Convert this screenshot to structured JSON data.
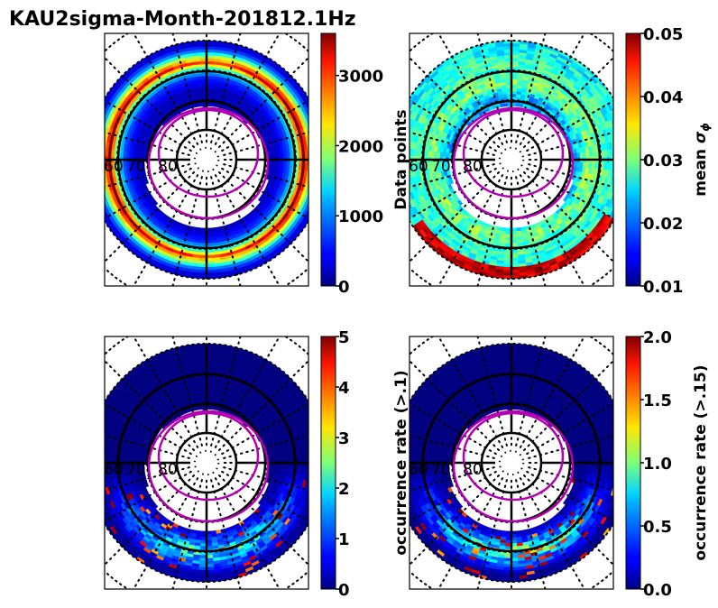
{
  "figure": {
    "title": "KAU2sigma-Month-201812.1Hz"
  },
  "chart_data": [
    {
      "type": "heatmap",
      "projection": "polar (geomagnetic latitude / MLT)",
      "panel": "top-left",
      "title": "",
      "colormap": "jet",
      "colorbar": {
        "label": "Data points",
        "range": [
          0,
          3600
        ],
        "ticks": [
          0,
          1000,
          2000,
          3000
        ],
        "tick_labels": [
          "0",
          "1000",
          "2000",
          "3000"
        ]
      },
      "latitude_labels": [
        "60",
        "70",
        "80"
      ],
      "latitude_rings": [
        50,
        60,
        70,
        80
      ],
      "data_extent_latitude": [
        50,
        70
      ],
      "description": "Annular ring of counts; peak (~3000-3600) along a narrow band near 55-58 lat, dusk/dawn sides orange; inner edge dark blue",
      "band_profile": [
        {
          "lat": 51,
          "value": 300
        },
        {
          "lat": 53,
          "value": 900
        },
        {
          "lat": 55,
          "value": 2000
        },
        {
          "lat": 57,
          "value": 3000
        },
        {
          "lat": 59,
          "value": 1500
        },
        {
          "lat": 62,
          "value": 600
        },
        {
          "lat": 66,
          "value": 200
        }
      ],
      "overlays": [
        "auroral oval boundary (magenta, 2 curves)"
      ]
    },
    {
      "type": "heatmap",
      "projection": "polar (geomagnetic latitude / MLT)",
      "panel": "top-right",
      "colormap": "jet",
      "colorbar": {
        "label": "mean σϕ",
        "range": [
          0.01,
          0.05
        ],
        "ticks": [
          0.01,
          0.02,
          0.03,
          0.04,
          0.05
        ],
        "tick_labels": [
          "0.01",
          "0.02",
          "0.03",
          "0.04",
          "0.05"
        ]
      },
      "latitude_labels": [
        "60",
        "70",
        "80"
      ],
      "latitude_rings": [
        50,
        60,
        70,
        80
      ],
      "data_extent_latitude": [
        50,
        70
      ],
      "description": "Mostly 0.02-0.03 (cyan/green); elevated 0.04-0.05 (yellow/red) near the nightside equatorward boundary and dusk sector",
      "band_profile": [
        {
          "lat": 52,
          "value": 0.025
        },
        {
          "lat": 56,
          "value": 0.027
        },
        {
          "lat": 60,
          "value": 0.028
        },
        {
          "lat": 64,
          "value": 0.03
        },
        {
          "lat": 68,
          "value": 0.022
        }
      ],
      "overlays": [
        "auroral oval boundary (magenta, 2 curves)"
      ]
    },
    {
      "type": "heatmap",
      "projection": "polar (geomagnetic latitude / MLT)",
      "panel": "bottom-left",
      "colormap": "jet",
      "colorbar": {
        "label": "occurrence rate (>.1)",
        "range": [
          0,
          5
        ],
        "ticks": [
          0,
          1,
          2,
          3,
          4,
          5
        ],
        "tick_labels": [
          "0",
          "1",
          "2",
          "3",
          "4",
          "5"
        ]
      },
      "latitude_labels": [
        "60",
        "70",
        "80"
      ],
      "latitude_rings": [
        50,
        60,
        70,
        80
      ],
      "data_extent_latitude": [
        50,
        70
      ],
      "description": "Mostly ~0 (dark blue); enhanced 1-5 in nightside/midnight sector along the auroral oval",
      "band_profile": [
        {
          "lat": 52,
          "value": 0.2
        },
        {
          "lat": 56,
          "value": 1.2
        },
        {
          "lat": 60,
          "value": 2.0
        },
        {
          "lat": 64,
          "value": 0.8
        },
        {
          "lat": 68,
          "value": 0.1
        }
      ],
      "overlays": [
        "auroral oval boundary (magenta, 2 curves)"
      ]
    },
    {
      "type": "heatmap",
      "projection": "polar (geomagnetic latitude / MLT)",
      "panel": "bottom-right",
      "colormap": "jet",
      "colorbar": {
        "label": "occurrence rate (>.15)",
        "range": [
          0.0,
          2.0
        ],
        "ticks": [
          0.0,
          0.5,
          1.0,
          1.5,
          2.0
        ],
        "tick_labels": [
          "0.0",
          "0.5",
          "1.0",
          "1.5",
          "2.0"
        ]
      },
      "latitude_labels": [
        "60",
        "70",
        "80"
      ],
      "latitude_rings": [
        50,
        60,
        70,
        80
      ],
      "data_extent_latitude": [
        50,
        70
      ],
      "description": "Mostly 0 (dark blue); scattered 0.5-2.0 patches in nightside sector along the auroral oval",
      "band_profile": [
        {
          "lat": 52,
          "value": 0.05
        },
        {
          "lat": 56,
          "value": 0.5
        },
        {
          "lat": 60,
          "value": 0.9
        },
        {
          "lat": 64,
          "value": 0.3
        },
        {
          "lat": 68,
          "value": 0.02
        }
      ],
      "overlays": [
        "auroral oval boundary (magenta, 2 curves)"
      ]
    }
  ],
  "colors": {
    "oval": "#b300b3",
    "axis": "#000000"
  }
}
